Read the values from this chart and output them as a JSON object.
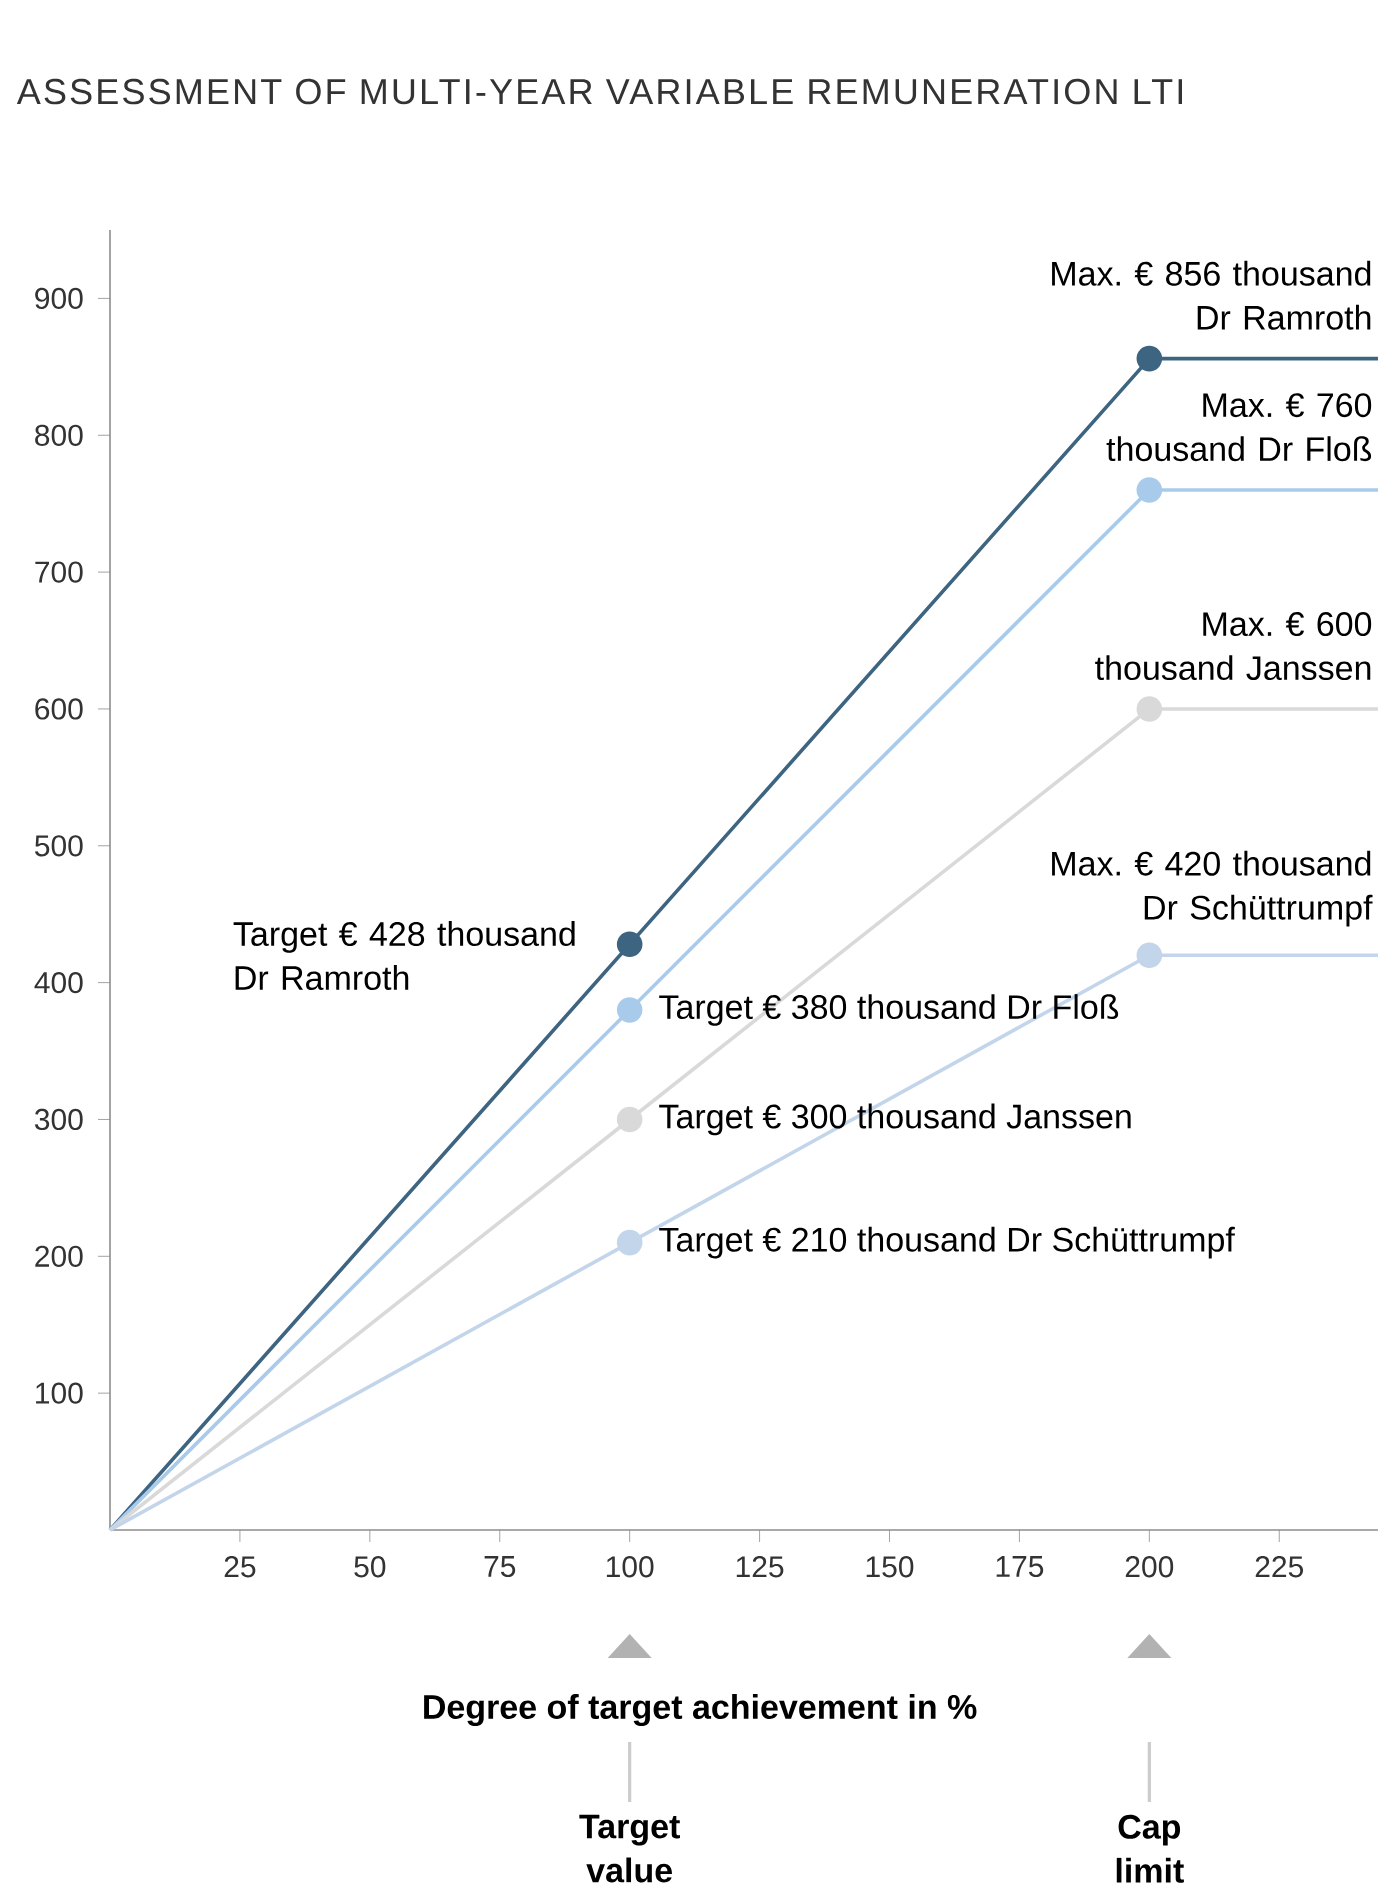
{
  "chart_data": {
    "type": "line",
    "title": "ASSESSMENT OF MULTI-YEAR VARIABLE REMUNERATION LTI",
    "xlabel": "Degree of target achievement in %",
    "xlim": [
      0,
      244
    ],
    "ylim": [
      0,
      950
    ],
    "xticks": [
      25,
      50,
      75,
      100,
      125,
      150,
      175,
      200,
      225
    ],
    "yticks": [
      100,
      200,
      300,
      400,
      500,
      600,
      700,
      800,
      900
    ],
    "grid": false,
    "series": [
      {
        "color": "#3d6480",
        "x": [
          0,
          100,
          200,
          244
        ],
        "values": [
          0,
          428,
          856,
          856
        ]
      },
      {
        "color": "#a9cbeb",
        "x": [
          0,
          100,
          200,
          244
        ],
        "values": [
          0,
          380,
          760,
          760
        ]
      },
      {
        "color": "#d9d9d9",
        "x": [
          0,
          100,
          200,
          244
        ],
        "values": [
          0,
          300,
          600,
          600
        ]
      },
      {
        "color": "#c3d5ea",
        "x": [
          0,
          100,
          200,
          244
        ],
        "values": [
          0,
          210,
          420,
          420
        ]
      },
      {
        "type": "scatter",
        "marker": "circle",
        "x": [
          100,
          100,
          100,
          100,
          200,
          200,
          200,
          200
        ],
        "values": [
          428,
          380,
          300,
          210,
          856,
          760,
          600,
          420
        ],
        "colors": [
          "#3d6480",
          "#a9cbeb",
          "#d9d9d9",
          "#c3d5ea",
          "#3d6480",
          "#a9cbeb",
          "#d9d9d9",
          "#c3d5ea"
        ]
      }
    ],
    "annotations": [
      "Max. € 856 thousand Dr Ramroth",
      "Max. € 760 thousand Dr Floß",
      "Max. € 600 thousand Janssen",
      "Max. € 420 thousand Dr Schüttrumpf",
      "Target € 428 thousand Dr Ramroth",
      "Target € 380 thousand Dr Floß",
      "Target € 300 thousand Janssen",
      "Target € 210 thousand Dr Schüttrumpf",
      "Target value",
      "Cap limit"
    ]
  }
}
